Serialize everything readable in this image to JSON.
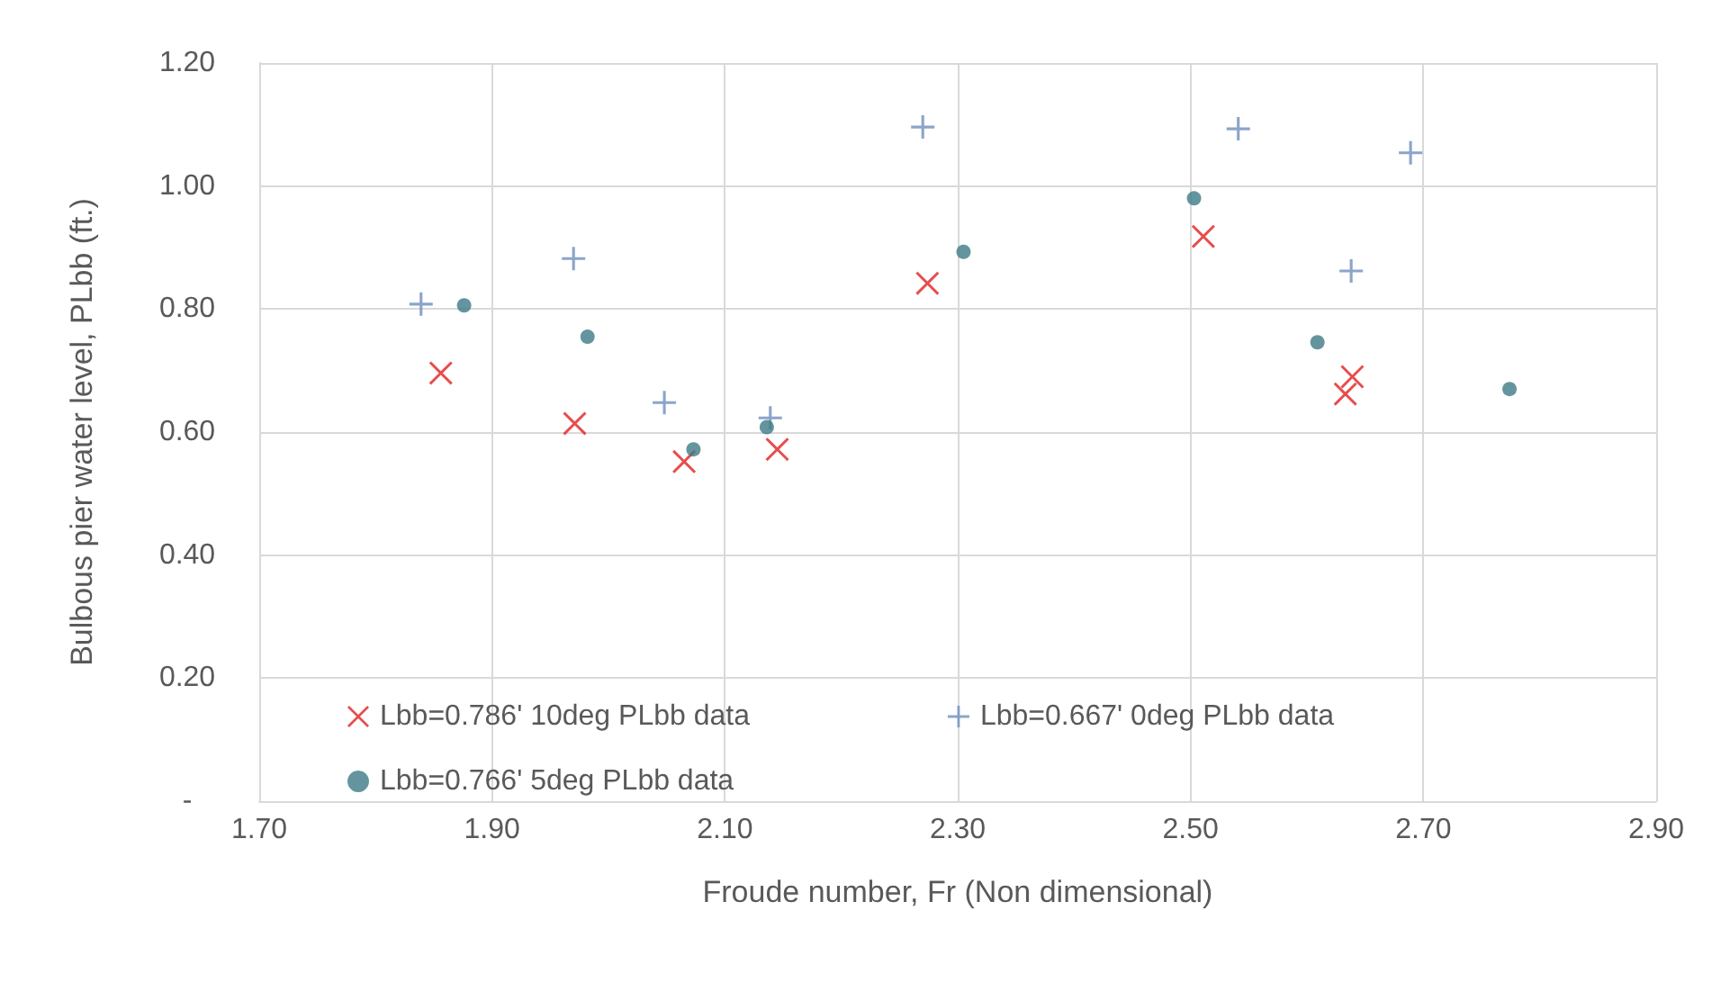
{
  "chart_data": {
    "type": "scatter",
    "xlabel": "Froude number, Fr (Non dimensional)",
    "ylabel": "Bulbous pier water level, PLbb (ft.)",
    "xlim": [
      1.7,
      2.9
    ],
    "xticks": [
      {
        "value": 1.7,
        "label": "1.70"
      },
      {
        "value": 1.9,
        "label": "1.90"
      },
      {
        "value": 2.1,
        "label": "2.10"
      },
      {
        "value": 2.3,
        "label": "2.30"
      },
      {
        "value": 2.5,
        "label": "2.50"
      },
      {
        "value": 2.7,
        "label": "2.70"
      },
      {
        "value": 2.9,
        "label": "2.90"
      }
    ],
    "ylim": [
      0,
      1.2
    ],
    "yticks": [
      {
        "value": 0,
        "label": "-"
      },
      {
        "value": 0.2,
        "label": "0.20"
      },
      {
        "value": 0.4,
        "label": "0.40"
      },
      {
        "value": 0.6,
        "label": "0.60"
      },
      {
        "value": 0.8,
        "label": "0.80"
      },
      {
        "value": 1.0,
        "label": "1.00"
      },
      {
        "value": 1.2,
        "label": "1.20"
      }
    ],
    "grid": true,
    "legend": "bottom left",
    "series": [
      {
        "name": "Lbb=0.786' 10deg PLbb data",
        "color": "#e0201f",
        "marker": "cross",
        "x": [
          1.856,
          1.971,
          2.065,
          2.145,
          2.274,
          2.511,
          2.639,
          2.633
        ],
        "values": [
          0.696,
          0.614,
          0.552,
          0.572,
          0.842,
          0.918,
          0.69,
          0.662
        ]
      },
      {
        "name": "Lbb=0.667' 0deg PLbb data",
        "color": "#6e8fbd",
        "marker": "plus",
        "x": [
          1.839,
          1.97,
          2.048,
          2.139,
          2.27,
          2.541,
          2.689,
          2.638
        ],
        "values": [
          0.808,
          0.882,
          0.648,
          0.623,
          1.096,
          1.093,
          1.054,
          0.862
        ]
      },
      {
        "name": "Lbb=0.766' 5deg PLbb data",
        "color": "#3d7a86",
        "marker": "circle",
        "x": [
          1.876,
          1.982,
          2.073,
          2.136,
          2.305,
          2.503,
          2.609,
          2.774
        ],
        "values": [
          0.806,
          0.755,
          0.572,
          0.608,
          0.893,
          0.98,
          0.746,
          0.67
        ]
      }
    ]
  }
}
